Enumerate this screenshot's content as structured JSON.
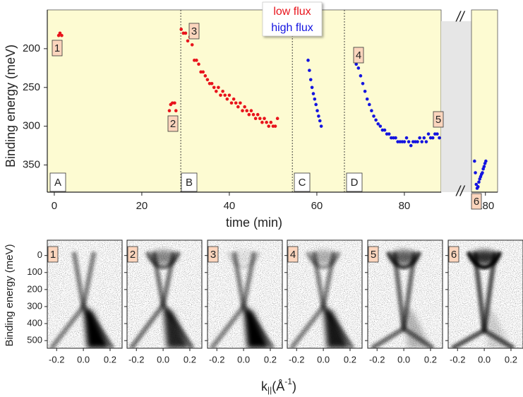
{
  "chart_data": [
    {
      "type": "scatter",
      "y_label": "Binding energy (meV)",
      "x_label": "time (min)",
      "ylim": [
        150,
        385
      ],
      "y_reversed": true,
      "yticks": [
        200,
        250,
        300,
        350
      ],
      "x_segments": [
        {
          "xlim": [
            -1.6,
            88.4
          ],
          "xticks": [
            0,
            20,
            40,
            60,
            80
          ]
        },
        {
          "xlim": [
            176.8,
            182.8
          ],
          "xticks": [
            180
          ]
        }
      ],
      "break_label": "//",
      "dividers": [
        28.9,
        54.4,
        66.3
      ],
      "regions": [
        "A",
        "B",
        "C",
        "D"
      ],
      "point_labels": [
        "1",
        "2",
        "3",
        "4",
        "5",
        "6"
      ],
      "background": "#fdfbd2",
      "break_color": "#e6e6e6",
      "series": [
        {
          "name": "low flux",
          "color": "#e8141c",
          "x": [
            1,
            1.3,
            1.7,
            26.3,
            26.6,
            27,
            27.5,
            27.8,
            29,
            29.5,
            30,
            30.5,
            31,
            31.5,
            32,
            32.5,
            33,
            33.5,
            34,
            34.5,
            35,
            35.5,
            36,
            36.5,
            37,
            37.5,
            38,
            38.5,
            39,
            39.5,
            40,
            40.5,
            41,
            41.5,
            42,
            42.5,
            43,
            43.5,
            44,
            44.5,
            45,
            45.5,
            46,
            46.5,
            47,
            47.5,
            48,
            48.5,
            49,
            49.5,
            50,
            50.5,
            51
          ],
          "values": [
            183,
            180,
            183,
            280,
            272,
            270,
            270,
            280,
            175,
            180,
            180,
            190,
            185,
            195,
            215,
            215,
            220,
            230,
            230,
            235,
            240,
            245,
            245,
            250,
            255,
            250,
            260,
            255,
            260,
            265,
            260,
            270,
            265,
            270,
            275,
            270,
            280,
            275,
            280,
            285,
            280,
            285,
            290,
            285,
            290,
            295,
            290,
            295,
            300,
            295,
            300,
            300,
            290
          ]
        },
        {
          "name": "high flux",
          "color": "#1414e0",
          "x": [
            58,
            58.3,
            58.6,
            58.9,
            59.2,
            59.5,
            59.8,
            60.1,
            60.4,
            60.7,
            61,
            69,
            69.5,
            70,
            70.5,
            71,
            71.5,
            72,
            72.5,
            73,
            73.5,
            74,
            74.5,
            75,
            75.5,
            76,
            76.5,
            77,
            77.5,
            78,
            78.5,
            79,
            79.5,
            80,
            80.5,
            81,
            81.5,
            82,
            82.5,
            83,
            83.5,
            84,
            84.5,
            85,
            85.5,
            86,
            86.5,
            87,
            87.5,
            88,
            88.5,
            89,
            177.5,
            177.7,
            177.9,
            178.1,
            178.3,
            178.5,
            178.7,
            178.9,
            179.1,
            179.3,
            179.5,
            179.7,
            179.9,
            180.1
          ],
          "values": [
            215,
            228,
            240,
            250,
            258,
            265,
            272,
            280,
            287,
            293,
            300,
            220,
            225,
            235,
            245,
            255,
            265,
            272,
            280,
            287,
            292,
            297,
            300,
            305,
            305,
            310,
            310,
            315,
            315,
            315,
            320,
            320,
            320,
            320,
            315,
            320,
            325,
            320,
            320,
            320,
            315,
            320,
            315,
            320,
            310,
            315,
            315,
            310,
            310,
            315,
            310,
            310,
            345,
            360,
            375,
            380,
            378,
            372,
            368,
            365,
            362,
            360,
            355,
            352,
            348,
            345
          ]
        }
      ]
    },
    {
      "type": "image_grid",
      "y_label": "Binding energy (meV)",
      "x_label": {
        "base": "k",
        "sub": "||",
        "unit": "(Å",
        "sup": "-1",
        "end": ")"
      },
      "xlim": [
        -0.27,
        0.29
      ],
      "ylim": [
        -90,
        545
      ],
      "y_reversed": true,
      "xticks": [
        -0.2,
        0.0,
        0.2
      ],
      "xtick_labels": [
        "-0.2",
        "0.0",
        "0.2"
      ],
      "yticks": [
        0,
        100,
        200,
        300,
        400,
        500
      ],
      "panels": [
        "1",
        "2",
        "3",
        "4",
        "5",
        "6"
      ]
    }
  ]
}
